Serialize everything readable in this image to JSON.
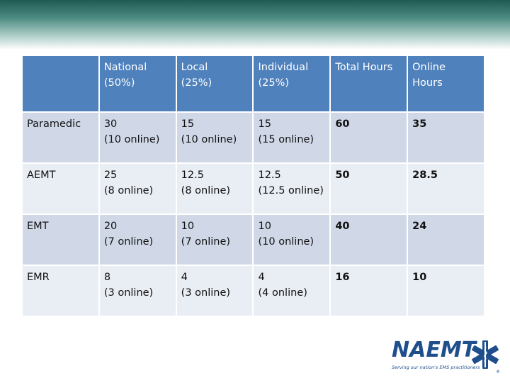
{
  "table": {
    "headers": [
      "",
      "National\n(50%)",
      "Local\n(25%)",
      "Individual\n(25%)",
      "Total Hours",
      "Online\nHours"
    ],
    "header_lines": [
      [
        ""
      ],
      [
        "National",
        "(50%)"
      ],
      [
        "Local",
        "(25%)"
      ],
      [
        "Individual",
        "(25%)"
      ],
      [
        "Total Hours"
      ],
      [
        "Online",
        "Hours"
      ]
    ],
    "rows": [
      {
        "label": "Paramedic",
        "national": [
          "30",
          "(10 online)"
        ],
        "local": [
          "15",
          "(10 online)"
        ],
        "individual": [
          "15",
          "(15 online)"
        ],
        "total": "60",
        "online": "35"
      },
      {
        "label": "AEMT",
        "national": [
          "25",
          "(8 online)"
        ],
        "local": [
          "12.5",
          "(8 online)"
        ],
        "individual": [
          "12.5",
          "(12.5 online)"
        ],
        "total": "50",
        "online": "28.5"
      },
      {
        "label": "EMT",
        "national": [
          "20",
          "(7 online)"
        ],
        "local": [
          "10",
          "(7 online)"
        ],
        "individual": [
          "10",
          "(10 online)"
        ],
        "total": "40",
        "online": "24"
      },
      {
        "label": "EMR",
        "national": [
          "8",
          "(3 online)"
        ],
        "local": [
          "4",
          "(3 online)"
        ],
        "individual": [
          "4",
          "(4 online)"
        ],
        "total": "16",
        "online": "10"
      }
    ]
  },
  "logo": {
    "name": "NAEMT",
    "tagline": "Serving our nation's EMS practitioners",
    "mark": "®"
  },
  "colors": {
    "header_bg": "#4f81bd",
    "row_odd": "#d0d8e8",
    "row_even": "#e9edf4",
    "logo_blue": "#1f4e8c",
    "band_dark": "#1f5a52"
  }
}
